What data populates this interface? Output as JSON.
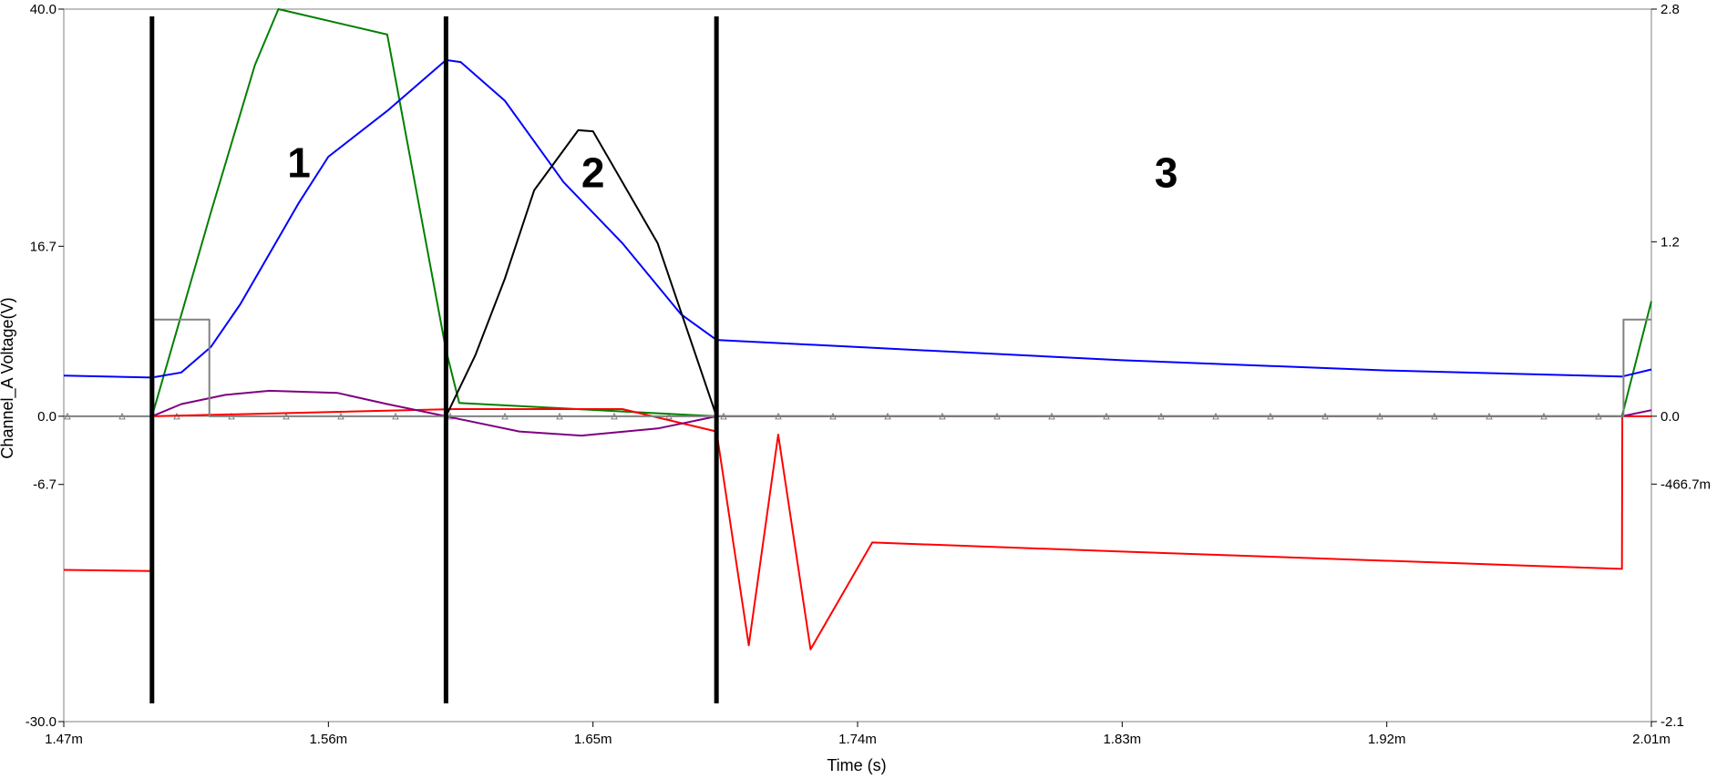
{
  "chart_data": {
    "type": "line",
    "title": "",
    "xlabel": "Time (s)",
    "ylabel": "Channel_A Voltage(V)",
    "xlim": [
      1.47,
      2.01
    ],
    "ylim": [
      -30,
      40
    ],
    "y2lim": [
      -2.1,
      2.8
    ],
    "x_ticks": [
      {
        "v": 1.47,
        "label": "1.47m"
      },
      {
        "v": 1.56,
        "label": "1.56m"
      },
      {
        "v": 1.65,
        "label": "1.65m"
      },
      {
        "v": 1.74,
        "label": "1.74m"
      },
      {
        "v": 1.83,
        "label": "1.83m"
      },
      {
        "v": 1.92,
        "label": "1.92m"
      },
      {
        "v": 2.01,
        "label": "2.01m"
      }
    ],
    "y_ticks": [
      {
        "v": 40,
        "label": "40.0"
      },
      {
        "v": 16.7,
        "label": "16.7"
      },
      {
        "v": 0,
        "label": "0.0"
      },
      {
        "v": -6.7,
        "label": "-6.7"
      },
      {
        "v": -30,
        "label": "-30.0"
      }
    ],
    "y2_ticks": [
      {
        "v": 2.8,
        "label": "2.8"
      },
      {
        "v": 1.2,
        "label": "1.2"
      },
      {
        "v": 0,
        "label": "0.0"
      },
      {
        "v": -0.4667,
        "label": "-466.7m"
      },
      {
        "v": -2.1,
        "label": "-2.1"
      }
    ],
    "grid": false,
    "legend": "none",
    "region_labels": [
      {
        "text": "1",
        "x": 1.55,
        "y": 23.5
      },
      {
        "text": "2",
        "x": 1.65,
        "y": 22.5
      },
      {
        "text": "3",
        "x": 1.845,
        "y": 22.5
      }
    ],
    "markers": [
      1.5,
      1.6,
      1.692
    ],
    "series": [
      {
        "color": "#008000",
        "axis": "left",
        "x": [
          1.5,
          1.52,
          1.535,
          1.543,
          1.58,
          1.6,
          1.6045,
          1.692,
          2.0,
          2.01
        ],
        "y": [
          0,
          20,
          34.5,
          40,
          37.5,
          6.5,
          1.3,
          0,
          0,
          11.3
        ]
      },
      {
        "color": "#0000ff",
        "axis": "left",
        "x": [
          1.47,
          1.5,
          1.51,
          1.52,
          1.53,
          1.55,
          1.56,
          1.58,
          1.6,
          1.605,
          1.62,
          1.64,
          1.66,
          1.68,
          1.692,
          1.74,
          1.83,
          1.92,
          2.0,
          2.01
        ],
        "y": [
          4.0,
          3.8,
          4.3,
          6.8,
          11.0,
          21.0,
          25.5,
          30.0,
          35.0,
          34.8,
          31.0,
          23.0,
          17.0,
          10.0,
          7.5,
          6.8,
          5.5,
          4.5,
          3.9,
          4.6
        ]
      },
      {
        "color": "#ff0000",
        "axis": "left",
        "x": [
          1.47,
          1.5,
          1.5001,
          1.603,
          1.66,
          1.692,
          1.703,
          1.713,
          1.724,
          1.745,
          1.83,
          2.0,
          2.0001,
          2.01
        ],
        "y": [
          -15.1,
          -15.2,
          0,
          0.7,
          0.7,
          -1.5,
          -22.5,
          -1.8,
          -22.9,
          -12.4,
          -13.3,
          -15.0,
          0,
          0
        ]
      },
      {
        "color": "#000000",
        "axis": "left",
        "x": [
          1.6,
          1.61,
          1.62,
          1.63,
          1.645,
          1.65,
          1.672,
          1.692
        ],
        "y": [
          0,
          6,
          13.5,
          22.2,
          28.1,
          28.0,
          17.0,
          0
        ]
      },
      {
        "color": "#800080",
        "axis": "left",
        "x": [
          1.5,
          1.51,
          1.525,
          1.54,
          1.563,
          1.58,
          1.6,
          1.625,
          1.646,
          1.672,
          1.692,
          2.0,
          2.01
        ],
        "y": [
          0,
          1.2,
          2.1,
          2.5,
          2.3,
          1.2,
          0,
          -1.5,
          -1.9,
          -1.2,
          0,
          0,
          0.6
        ]
      },
      {
        "color": "#808080",
        "axis": "left",
        "x": [
          1.47,
          1.5005,
          1.5005,
          1.5195,
          1.5195,
          2.0005,
          2.0005,
          2.01
        ],
        "y": [
          0,
          0,
          9.5,
          9.5,
          0,
          0,
          9.5,
          9.5
        ]
      }
    ]
  }
}
